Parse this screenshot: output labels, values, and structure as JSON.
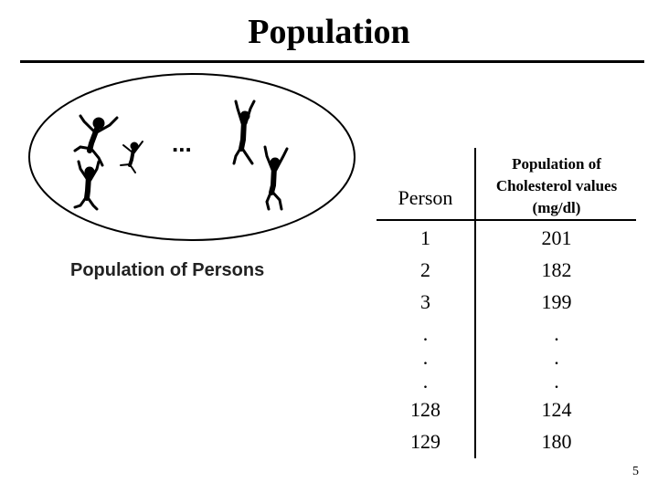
{
  "slide": {
    "title": "Population",
    "page_number": "5"
  },
  "figure": {
    "caption": "Population of Persons",
    "ellipsis": "...",
    "icon": "dancing-people-clipart"
  },
  "table": {
    "headers": {
      "person": "Person",
      "cholesterol_lines": [
        "Population of",
        "Cholesterol values",
        "(mg/dl)"
      ]
    },
    "rows": [
      {
        "person": "1",
        "value": "201"
      },
      {
        "person": "2",
        "value": "182"
      },
      {
        "person": "3",
        "value": "199"
      },
      {
        "person": ".",
        "value": "."
      },
      {
        "person": ".",
        "value": "."
      },
      {
        "person": ".",
        "value": "."
      },
      {
        "person": "128",
        "value": "124"
      },
      {
        "person": "129",
        "value": "180"
      }
    ]
  }
}
